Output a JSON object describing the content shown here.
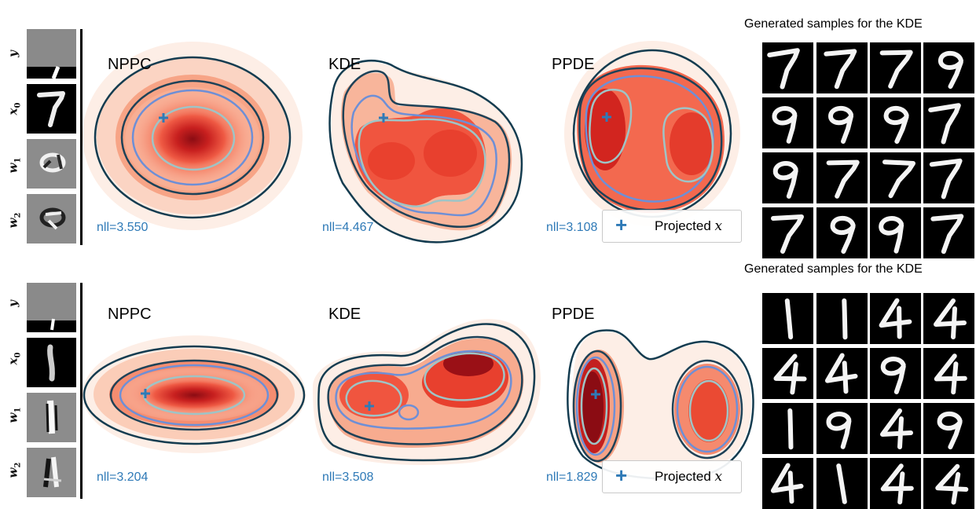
{
  "side_labels": [
    "y",
    "x",
    "w",
    "w"
  ],
  "side_label_subs": [
    "",
    "0",
    "1",
    "2"
  ],
  "legend_label": "Projected ",
  "legend_var": "x",
  "rows": [
    {
      "panels": [
        {
          "title": "NPPC",
          "nll": "nll=3.550"
        },
        {
          "title": "KDE",
          "nll": "nll=4.467"
        },
        {
          "title": "PPDE",
          "nll": "nll=3.108"
        }
      ],
      "samples_title": "Generated samples for the KDE",
      "sample_digits": [
        "7",
        "7",
        "7",
        "9",
        "9",
        "9",
        "9",
        "7",
        "9",
        "7",
        "7",
        "7",
        "7",
        "9",
        "9",
        "7"
      ]
    },
    {
      "panels": [
        {
          "title": "NPPC",
          "nll": "nll=3.204"
        },
        {
          "title": "KDE",
          "nll": "nll=3.508"
        },
        {
          "title": "PPDE",
          "nll": "nll=1.829"
        }
      ],
      "samples_title": "Generated samples for the KDE",
      "sample_digits": [
        "1",
        "1",
        "4",
        "4",
        "4",
        "4",
        "9",
        "4",
        "1",
        "9",
        "4",
        "9",
        "4",
        "1",
        "4",
        "4"
      ]
    }
  ]
}
